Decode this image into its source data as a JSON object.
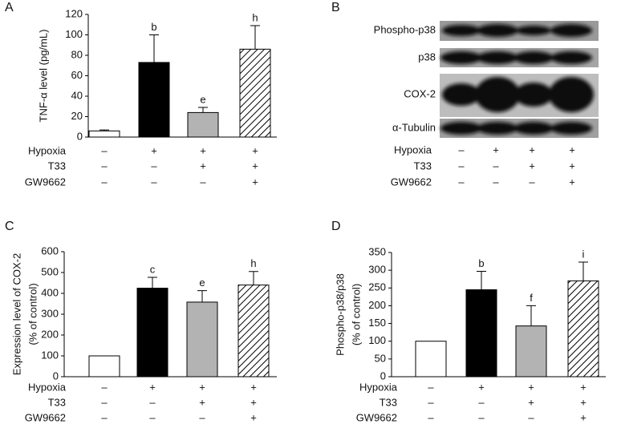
{
  "chart_data": [
    {
      "type": "bar",
      "panel": "A",
      "y_label": [
        "TNF-α level (pg/mL)"
      ],
      "categories": [
        null,
        null,
        null,
        null
      ],
      "values": [
        6,
        73,
        24,
        86
      ],
      "errors": [
        1,
        27,
        5,
        23
      ],
      "letters": [
        null,
        "b",
        "e",
        "h"
      ],
      "colors": [
        "#ffffff",
        "#000000",
        "#b3b3b3",
        "#ffffff"
      ],
      "hatch": [
        false,
        false,
        false,
        true
      ],
      "ylim": [
        0,
        120
      ],
      "yticks": [
        0,
        20,
        40,
        60,
        80,
        100,
        120
      ],
      "conditions": [
        {
          "name": "Hypoxia",
          "marks": [
            "–",
            "+",
            "+",
            "+"
          ]
        },
        {
          "name": "T33",
          "marks": [
            "–",
            "–",
            "+",
            "+"
          ]
        },
        {
          "name": "GW9662",
          "marks": [
            "–",
            "–",
            "–",
            "+"
          ]
        }
      ]
    },
    {
      "type": "bar",
      "panel": "C",
      "y_label": [
        "Expression level of COX-2",
        "(% of control)"
      ],
      "categories": [
        null,
        null,
        null,
        null
      ],
      "values": [
        100,
        425,
        358,
        440
      ],
      "errors": [
        null,
        52,
        55,
        65
      ],
      "letters": [
        null,
        "c",
        "e",
        "h"
      ],
      "colors": [
        "#ffffff",
        "#000000",
        "#b3b3b3",
        "#ffffff"
      ],
      "hatch": [
        false,
        false,
        false,
        true
      ],
      "ylim": [
        0,
        600
      ],
      "yticks": [
        0,
        100,
        200,
        300,
        400,
        500,
        600
      ],
      "conditions": [
        {
          "name": "Hypoxia",
          "marks": [
            "–",
            "+",
            "+",
            "+"
          ]
        },
        {
          "name": "T33",
          "marks": [
            "–",
            "–",
            "+",
            "+"
          ]
        },
        {
          "name": "GW9662",
          "marks": [
            "–",
            "–",
            "–",
            "+"
          ]
        }
      ]
    },
    {
      "type": "bar",
      "panel": "D",
      "y_label": [
        "Phospho-p38/p38",
        "(% of control)"
      ],
      "categories": [
        null,
        null,
        null,
        null
      ],
      "values": [
        100,
        245,
        143,
        270
      ],
      "errors": [
        null,
        52,
        57,
        53
      ],
      "letters": [
        null,
        "b",
        "f",
        "i"
      ],
      "colors": [
        "#ffffff",
        "#000000",
        "#b3b3b3",
        "#ffffff"
      ],
      "hatch": [
        false,
        false,
        false,
        true
      ],
      "ylim": [
        0,
        350
      ],
      "yticks": [
        0,
        50,
        100,
        150,
        200,
        250,
        300,
        350
      ],
      "conditions": [
        {
          "name": "Hypoxia",
          "marks": [
            "–",
            "+",
            "+",
            "+"
          ]
        },
        {
          "name": "T33",
          "marks": [
            "–",
            "–",
            "+",
            "+"
          ]
        },
        {
          "name": "GW9662",
          "marks": [
            "–",
            "–",
            "–",
            "+"
          ]
        }
      ]
    }
  ],
  "blot": {
    "panel": "B",
    "rows": [
      "Phospho-p38",
      "p38",
      "COX-2",
      "α-Tubulin"
    ],
    "conditions": [
      {
        "name": "Hypoxia",
        "marks": [
          "–",
          "+",
          "+",
          "+"
        ]
      },
      {
        "name": "T33",
        "marks": [
          "–",
          "–",
          "+",
          "+"
        ]
      },
      {
        "name": "GW9662",
        "marks": [
          "–",
          "–",
          "–",
          "+"
        ]
      }
    ]
  }
}
